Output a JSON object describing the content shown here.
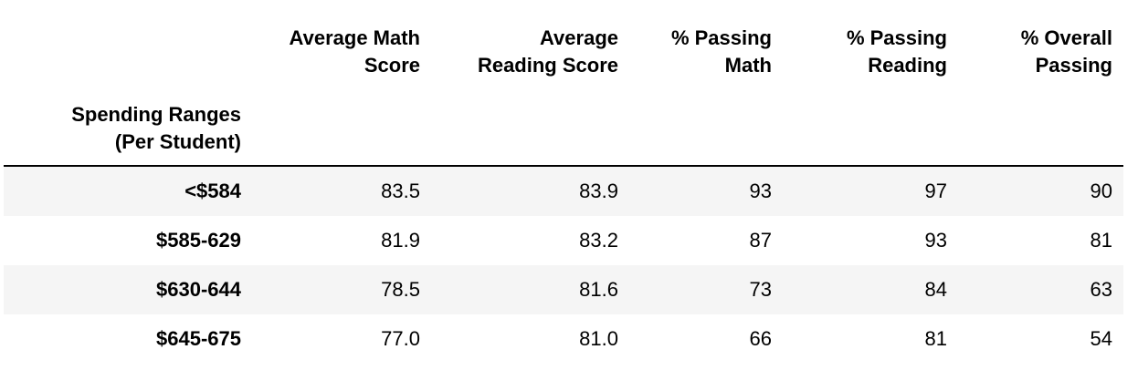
{
  "table": {
    "columns": [
      {
        "line1": "Average Math",
        "line2": "Score"
      },
      {
        "line1": "Average",
        "line2": "Reading Score"
      },
      {
        "line1": "% Passing",
        "line2": "Math"
      },
      {
        "line1": "% Passing",
        "line2": "Reading"
      },
      {
        "line1": "% Overall",
        "line2": "Passing"
      }
    ],
    "index_name": {
      "line1": "Spending Ranges",
      "line2": "(Per Student)"
    },
    "rows": [
      {
        "label": "<$584",
        "values": [
          "83.5",
          "83.9",
          "93",
          "97",
          "90"
        ]
      },
      {
        "label": "$585-629",
        "values": [
          "81.9",
          "83.2",
          "87",
          "93",
          "81"
        ]
      },
      {
        "label": "$630-644",
        "values": [
          "78.5",
          "81.6",
          "73",
          "84",
          "63"
        ]
      },
      {
        "label": "$645-675",
        "values": [
          "77.0",
          "81.0",
          "66",
          "81",
          "54"
        ]
      }
    ]
  },
  "colors": {
    "striped_row": "#f5f5f5",
    "header_rule": "#000000"
  }
}
